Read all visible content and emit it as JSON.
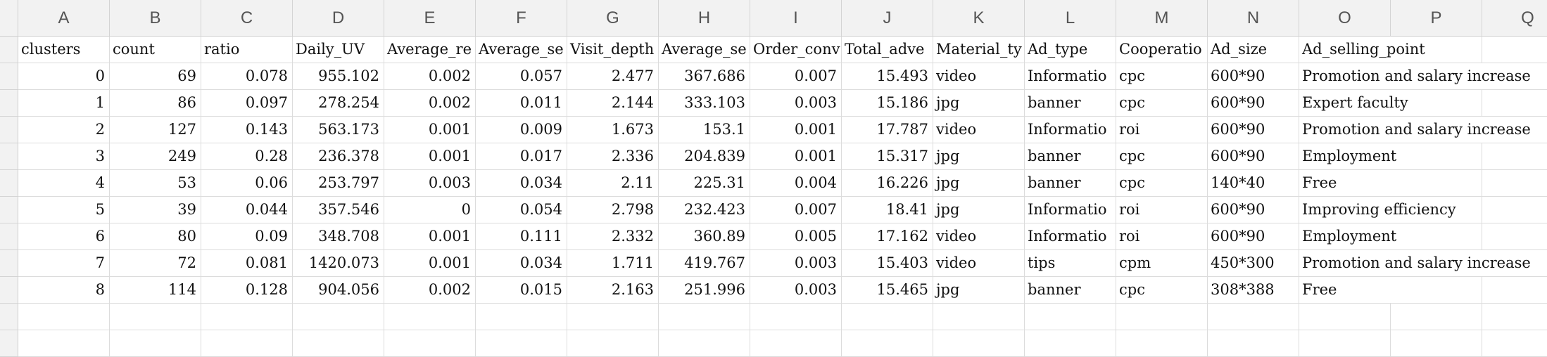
{
  "sheet": {
    "column_letters": [
      "A",
      "B",
      "C",
      "D",
      "E",
      "F",
      "G",
      "H",
      "I",
      "J",
      "K",
      "L",
      "M",
      "N",
      "O",
      "P",
      "Q"
    ],
    "headers": [
      "clusters",
      "count",
      "ratio",
      "Daily_UV",
      "Average_re",
      "Average_se",
      "Visit_depth",
      "Average_se",
      "Order_conv",
      "Total_adve",
      "Material_ty",
      "Ad_type",
      "Cooperatio",
      "Ad_size",
      "Ad_selling_point"
    ],
    "rows": [
      [
        "0",
        "69",
        "0.078",
        "955.102",
        "0.002",
        "0.057",
        "2.477",
        "367.686",
        "0.007",
        "15.493",
        "video",
        "Informatio",
        "cpc",
        "600*90",
        "Promotion and salary increase"
      ],
      [
        "1",
        "86",
        "0.097",
        "278.254",
        "0.002",
        "0.011",
        "2.144",
        "333.103",
        "0.003",
        "15.186",
        "jpg",
        "banner",
        "cpc",
        "600*90",
        "Expert faculty"
      ],
      [
        "2",
        "127",
        "0.143",
        "563.173",
        "0.001",
        "0.009",
        "1.673",
        "153.1",
        "0.001",
        "17.787",
        "video",
        "Informatio",
        "roi",
        "600*90",
        "Promotion and salary increase"
      ],
      [
        "3",
        "249",
        "0.28",
        "236.378",
        "0.001",
        "0.017",
        "2.336",
        "204.839",
        "0.001",
        "15.317",
        "jpg",
        "banner",
        "cpc",
        "600*90",
        "Employment"
      ],
      [
        "4",
        "53",
        "0.06",
        "253.797",
        "0.003",
        "0.034",
        "2.11",
        "225.31",
        "0.004",
        "16.226",
        "jpg",
        "banner",
        "cpc",
        "140*40",
        "Free"
      ],
      [
        "5",
        "39",
        "0.044",
        "357.546",
        "0",
        "0.054",
        "2.798",
        "232.423",
        "0.007",
        "18.41",
        "jpg",
        "Informatio",
        "roi",
        "600*90",
        "Improving efficiency"
      ],
      [
        "6",
        "80",
        "0.09",
        "348.708",
        "0.001",
        "0.111",
        "2.332",
        "360.89",
        "0.005",
        "17.162",
        "video",
        "Informatio",
        "roi",
        "600*90",
        "Employment"
      ],
      [
        "7",
        "72",
        "0.081",
        "1420.073",
        "0.001",
        "0.034",
        "1.711",
        "419.767",
        "0.003",
        "15.403",
        "video",
        "tips",
        "cpm",
        "450*300",
        "Promotion and salary increase"
      ],
      [
        "8",
        "114",
        "0.128",
        "904.056",
        "0.002",
        "0.015",
        "2.163",
        "251.996",
        "0.003",
        "15.465",
        "jpg",
        "banner",
        "cpc",
        "308*388",
        "Free"
      ]
    ]
  }
}
